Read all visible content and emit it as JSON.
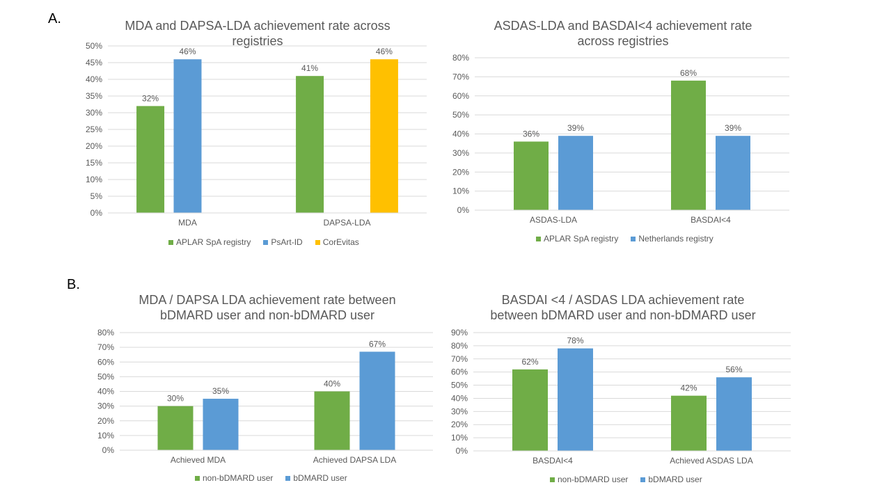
{
  "labels": {
    "a": "A.",
    "b": "B."
  },
  "chart_data": [
    {
      "id": "c1",
      "type": "bar",
      "title": "MDA and DAPSA-LDA achievement rate across registries",
      "title_lines": [
        "MDA and DAPSA-LDA achievement rate across",
        "registries"
      ],
      "categories": [
        "MDA",
        "DAPSA-LDA"
      ],
      "series": [
        {
          "name": "APLAR SpA registry",
          "color": "#70AD47",
          "values": [
            32,
            41
          ]
        },
        {
          "name": "PsArt-ID",
          "color": "#5B9BD5",
          "values": [
            46,
            null
          ]
        },
        {
          "name": "CorEvitas",
          "color": "#FFC000",
          "values": [
            null,
            46
          ]
        }
      ],
      "data_labels": [
        [
          "32%",
          "41%"
        ],
        [
          "46%",
          ""
        ],
        [
          "",
          "46%"
        ]
      ],
      "yticks": [
        "0%",
        "5%",
        "10%",
        "15%",
        "20%",
        "25%",
        "30%",
        "35%",
        "40%",
        "45%",
        "50%"
      ],
      "ylim": [
        0,
        50
      ],
      "grid": true,
      "legend": "bottom"
    },
    {
      "id": "c2",
      "type": "bar",
      "title": "ASDAS-LDA and BASDAI<4 achievement rate across registries",
      "title_lines": [
        "ASDAS-LDA and BASDAI<4 achievement rate",
        "across registries"
      ],
      "categories": [
        "ASDAS-LDA",
        "BASDAI<4"
      ],
      "series": [
        {
          "name": "APLAR SpA registry",
          "color": "#70AD47",
          "values": [
            36,
            68
          ]
        },
        {
          "name": "Netherlands registry",
          "color": "#5B9BD5",
          "values": [
            39,
            39
          ]
        }
      ],
      "data_labels": [
        [
          "36%",
          "68%"
        ],
        [
          "39%",
          "39%"
        ]
      ],
      "yticks": [
        "0%",
        "10%",
        "20%",
        "30%",
        "40%",
        "50%",
        "60%",
        "70%",
        "80%"
      ],
      "ylim": [
        0,
        80
      ],
      "grid": true,
      "legend": "bottom"
    },
    {
      "id": "c3",
      "type": "bar",
      "title": "MDA / DAPSA LDA achievement rate between bDMARD user and non-bDMARD user",
      "title_lines": [
        "MDA / DAPSA LDA achievement rate between",
        "bDMARD user and non-bDMARD user"
      ],
      "categories": [
        "Achieved MDA",
        "Achieved DAPSA LDA"
      ],
      "series": [
        {
          "name": "non-bDMARD user",
          "color": "#70AD47",
          "values": [
            30,
            40
          ]
        },
        {
          "name": "bDMARD user",
          "color": "#5B9BD5",
          "values": [
            35,
            67
          ]
        }
      ],
      "data_labels": [
        [
          "30%",
          "40%"
        ],
        [
          "35%",
          "67%"
        ]
      ],
      "yticks": [
        "0%",
        "10%",
        "20%",
        "30%",
        "40%",
        "50%",
        "60%",
        "70%",
        "80%"
      ],
      "ylim": [
        0,
        80
      ],
      "grid": true,
      "legend": "bottom"
    },
    {
      "id": "c4",
      "type": "bar",
      "title": "BASDAI <4 / ASDAS LDA achievement rate between bDMARD user and non-bDMARD user",
      "title_lines": [
        "BASDAI <4 / ASDAS LDA achievement rate",
        "between bDMARD user and non-bDMARD user"
      ],
      "categories": [
        "BASDAI<4",
        "Achieved ASDAS LDA"
      ],
      "series": [
        {
          "name": "non-bDMARD user",
          "color": "#70AD47",
          "values": [
            62,
            42
          ]
        },
        {
          "name": "bDMARD user",
          "color": "#5B9BD5",
          "values": [
            78,
            56
          ]
        }
      ],
      "data_labels": [
        [
          "62%",
          "42%"
        ],
        [
          "78%",
          "56%"
        ]
      ],
      "yticks": [
        "0%",
        "10%",
        "20%",
        "30%",
        "40%",
        "50%",
        "60%",
        "70%",
        "80%",
        "90%"
      ],
      "ylim": [
        0,
        90
      ],
      "grid": true,
      "legend": "bottom"
    }
  ]
}
